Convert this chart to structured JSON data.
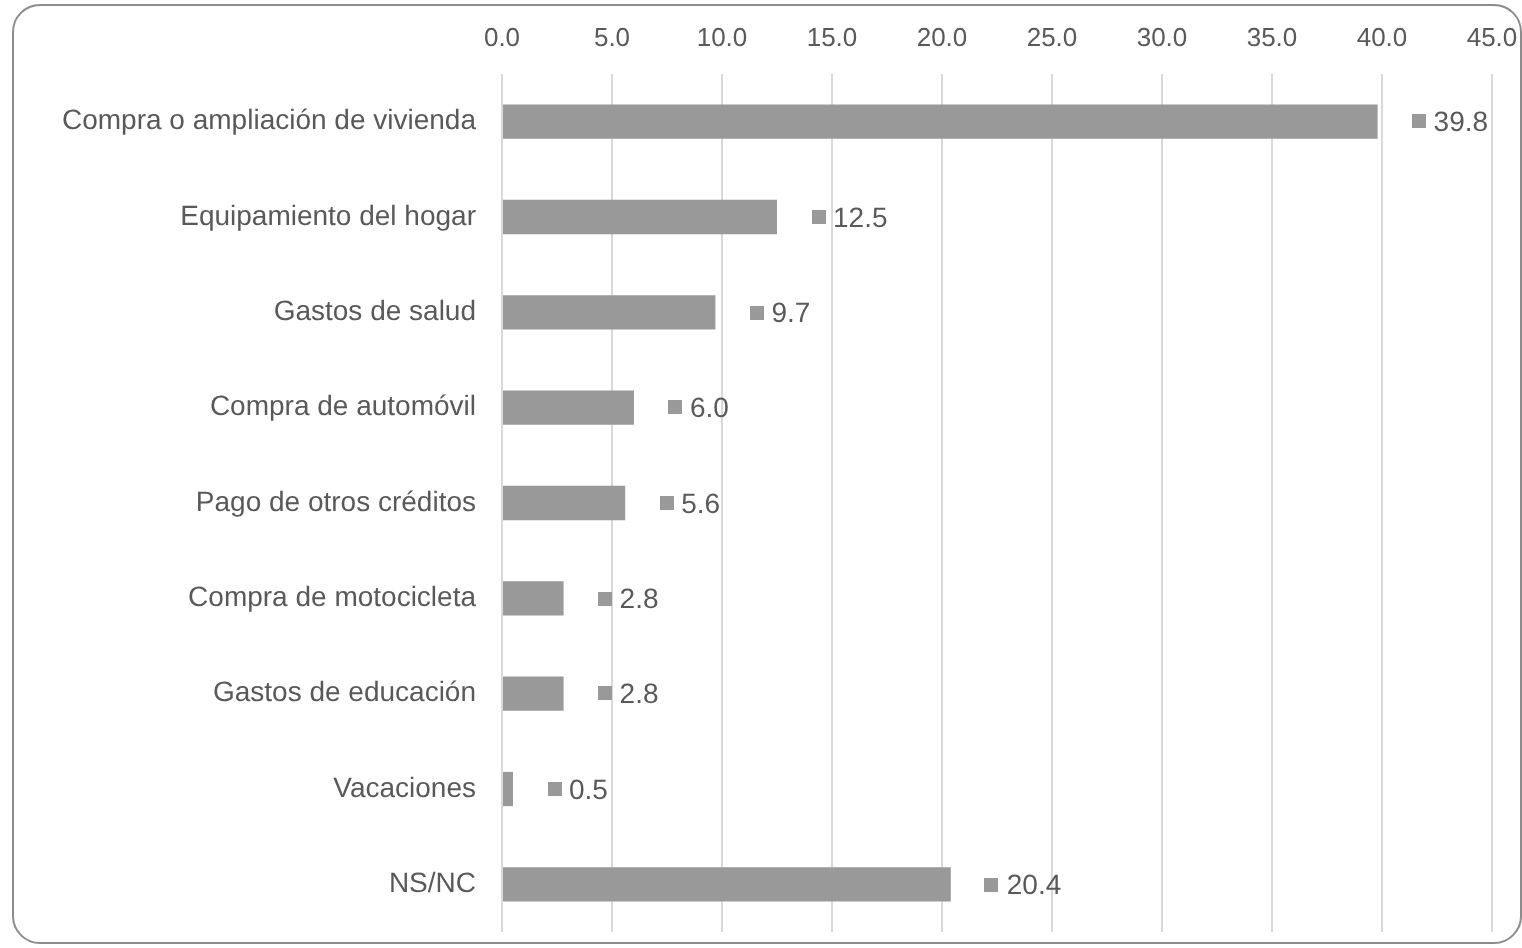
{
  "chart_data": {
    "type": "bar",
    "orientation": "horizontal",
    "categories": [
      "Compra o ampliación de vivienda",
      "Equipamiento del hogar",
      "Gastos de salud",
      "Compra de automóvil",
      "Pago de otros créditos",
      "Compra de motocicleta",
      "Gastos de educación",
      "Vacaciones",
      "NS/NC"
    ],
    "values": [
      39.8,
      12.5,
      9.7,
      6.0,
      5.6,
      2.8,
      2.8,
      0.5,
      20.4
    ],
    "value_labels": [
      "39.8",
      "12.5",
      "9.7",
      "6.0",
      "5.6",
      "2.8",
      "2.8",
      "0.5",
      "20.4"
    ],
    "color": "#999999",
    "xlim": [
      0,
      45
    ],
    "xticks": [
      {
        "value": 0,
        "label": "0.0"
      },
      {
        "value": 5,
        "label": "5.0"
      },
      {
        "value": 10,
        "label": "10.0"
      },
      {
        "value": 15,
        "label": "15.0"
      },
      {
        "value": 20,
        "label": "20.0"
      },
      {
        "value": 25,
        "label": "25.0"
      },
      {
        "value": 30,
        "label": "30.0"
      },
      {
        "value": 35,
        "label": "35.0"
      },
      {
        "value": 40,
        "label": "40.0"
      },
      {
        "value": 45,
        "label": "45.0"
      }
    ],
    "grid": "x",
    "legend": false
  }
}
